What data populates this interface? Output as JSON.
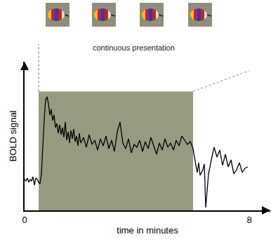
{
  "chart_data": {
    "type": "line",
    "annotation": "continuous presentation",
    "x_label": "time in minutes",
    "y_label": "BOLD signal",
    "x": [
      0,
      0.05,
      0.1,
      0.15,
      0.2,
      0.25,
      0.3,
      0.35,
      0.4,
      0.45,
      0.5,
      0.55,
      0.6,
      0.65,
      0.7,
      0.75,
      0.8,
      0.85,
      0.9,
      0.95,
      1.0,
      1.05,
      1.1,
      1.15,
      1.2,
      1.25,
      1.3,
      1.35,
      1.4,
      1.45,
      1.5,
      1.55,
      1.6,
      1.65,
      1.7,
      1.75,
      1.8,
      1.85,
      1.9,
      1.95,
      2.0,
      2.1,
      2.2,
      2.3,
      2.4,
      2.5,
      2.6,
      2.7,
      2.8,
      2.9,
      3.0,
      3.1,
      3.2,
      3.3,
      3.4,
      3.5,
      3.6,
      3.7,
      3.8,
      3.9,
      4.0,
      4.1,
      4.2,
      4.3,
      4.4,
      4.5,
      4.6,
      4.7,
      4.8,
      4.9,
      5.0,
      5.1,
      5.2,
      5.3,
      5.4,
      5.5,
      5.6,
      5.7,
      5.8,
      5.9,
      6.0,
      6.1,
      6.15,
      6.2,
      6.25,
      6.35,
      6.4,
      6.45,
      6.55,
      6.65,
      6.75,
      6.85,
      6.95,
      7.05,
      7.15,
      7.25,
      7.35,
      7.45,
      7.55,
      7.65,
      7.75,
      7.85,
      7.95
    ],
    "values": [
      2.2,
      2.1,
      2.3,
      2.0,
      2.2,
      2.1,
      2.4,
      1.8,
      2.3,
      2.2,
      2.0,
      1.9,
      2.6,
      5.0,
      6.5,
      7.9,
      8.1,
      7.6,
      6.8,
      7.2,
      6.4,
      6.8,
      5.9,
      6.2,
      5.5,
      6.1,
      5.4,
      5.9,
      5.2,
      6.3,
      5.0,
      5.6,
      4.8,
      5.7,
      5.1,
      5.8,
      4.9,
      5.3,
      4.6,
      5.5,
      4.8,
      5.2,
      4.5,
      5.4,
      4.7,
      5.0,
      4.3,
      5.1,
      4.6,
      5.3,
      4.4,
      5.0,
      4.2,
      5.6,
      6.3,
      4.8,
      4.4,
      5.1,
      4.1,
      4.7,
      4.5,
      5.0,
      4.2,
      4.9,
      4.4,
      5.2,
      4.6,
      4.0,
      4.8,
      4.3,
      5.1,
      4.5,
      4.8,
      4.3,
      5.0,
      4.6,
      5.3,
      5.0,
      4.7,
      4.9,
      4.4,
      3.2,
      2.7,
      3.4,
      2.5,
      2.9,
      3.3,
      0.2,
      2.6,
      3.6,
      4.5,
      3.8,
      4.3,
      3.2,
      4.0,
      3.1,
      3.6,
      2.6,
      2.9,
      3.4,
      2.7,
      3.0,
      3.1
    ],
    "color": "#000000",
    "xlim": [
      0,
      8.75
    ],
    "xticks": [
      0,
      8
    ],
    "ylim": [
      0,
      10.6
    ],
    "yticks": [],
    "grid": false,
    "tick_labels": "x",
    "stimulus": {
      "start": 0.5,
      "end": 6.0
    }
  }
}
